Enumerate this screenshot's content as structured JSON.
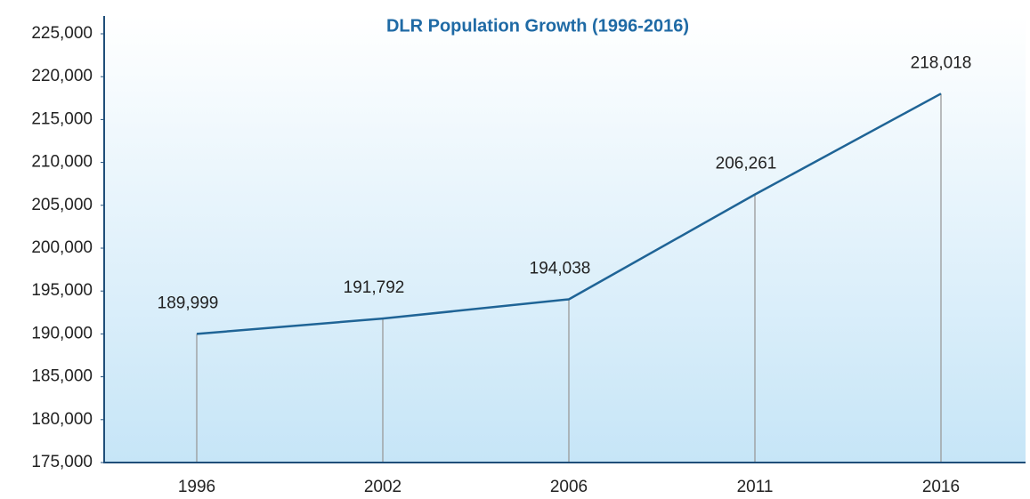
{
  "chart_data": {
    "type": "line",
    "title": "DLR Population Growth (1996-2016)",
    "categories": [
      "1996",
      "2002",
      "2006",
      "2011",
      "2016"
    ],
    "values": [
      189999,
      191792,
      194038,
      206261,
      218018
    ],
    "value_labels": [
      "189,999",
      "191,792",
      "194,038",
      "206,261",
      "218,018"
    ],
    "color": "#1f6496",
    "ylim": [
      175000,
      225000
    ],
    "yticks": [
      {
        "value": 175000,
        "label": "175,000"
      },
      {
        "value": 180000,
        "label": "180,000"
      },
      {
        "value": 185000,
        "label": "185,000"
      },
      {
        "value": 190000,
        "label": "190,000"
      },
      {
        "value": 195000,
        "label": "195,000"
      },
      {
        "value": 200000,
        "label": "200,000"
      },
      {
        "value": 205000,
        "label": "205,000"
      },
      {
        "value": 210000,
        "label": "210,000"
      },
      {
        "value": 215000,
        "label": "215,000"
      },
      {
        "value": 220000,
        "label": "220,000"
      },
      {
        "value": 225000,
        "label": "225,000"
      }
    ]
  }
}
